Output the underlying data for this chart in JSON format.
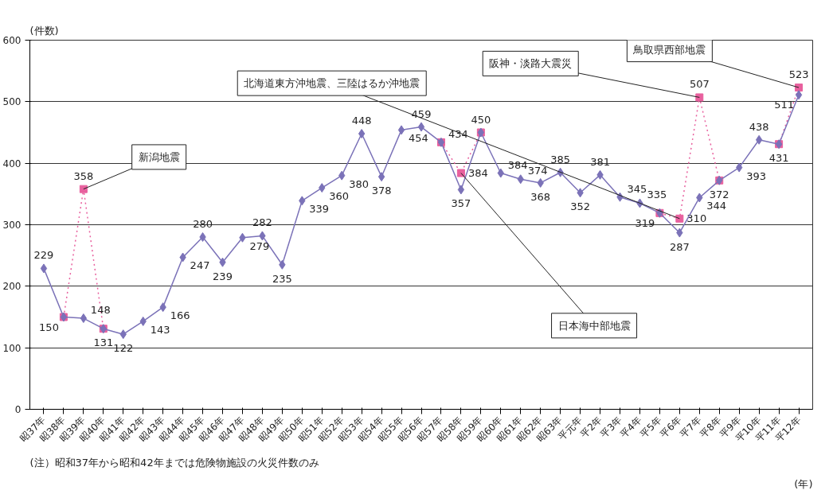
{
  "chart_data": {
    "type": "line",
    "ylabel": "(件数)",
    "xlabel": "(年)",
    "categories": [
      "昭37年",
      "昭38年",
      "昭39年",
      "昭40年",
      "昭41年",
      "昭42年",
      "昭43年",
      "昭44年",
      "昭45年",
      "昭46年",
      "昭47年",
      "昭48年",
      "昭49年",
      "昭50年",
      "昭51年",
      "昭52年",
      "昭53年",
      "昭54年",
      "昭55年",
      "昭56年",
      "昭57年",
      "昭58年",
      "昭59年",
      "昭60年",
      "昭61年",
      "昭62年",
      "昭63年",
      "平元年",
      "平2年",
      "平3年",
      "平4年",
      "平5年",
      "平6年",
      "平7年",
      "平8年",
      "平9年",
      "平10年",
      "平11年",
      "平12年"
    ],
    "series": [
      {
        "color": "#7b72b8",
        "line_style": "solid",
        "marker": "diamond",
        "values": [
          229,
          150,
          148,
          131,
          122,
          143,
          166,
          247,
          280,
          239,
          279,
          282,
          235,
          339,
          360,
          380,
          448,
          378,
          454,
          459,
          434,
          357,
          450,
          384,
          374,
          368,
          385,
          352,
          381,
          345,
          335,
          319,
          287,
          344,
          372,
          393,
          438,
          431,
          511
        ],
        "value_labels": [
          "229",
          null,
          "148",
          null,
          "122",
          "143",
          "166",
          "247",
          "280",
          "239",
          "279",
          "282",
          "235",
          "339",
          "360",
          "380",
          "448",
          "378",
          "454",
          "459",
          null,
          "357",
          null,
          "384",
          "374",
          "368",
          "385",
          "352",
          "381",
          "345",
          "335",
          null,
          "287",
          "344",
          null,
          "393",
          "438",
          null,
          "511"
        ]
      },
      {
        "color": "#e8609e",
        "line_style": "dotted",
        "marker": "square",
        "values": [
          null,
          150,
          358,
          131,
          null,
          null,
          null,
          null,
          null,
          null,
          null,
          null,
          null,
          null,
          null,
          null,
          null,
          null,
          null,
          null,
          434,
          384,
          450,
          null,
          null,
          null,
          null,
          null,
          null,
          null,
          null,
          319,
          310,
          507,
          372,
          null,
          null,
          431,
          523
        ],
        "value_labels": [
          null,
          "150",
          "358",
          "131",
          null,
          null,
          null,
          null,
          null,
          null,
          null,
          null,
          null,
          null,
          null,
          null,
          null,
          null,
          null,
          null,
          "434",
          "384",
          "450",
          null,
          null,
          null,
          null,
          null,
          null,
          null,
          null,
          "319",
          "310",
          "507",
          "372",
          null,
          null,
          "431",
          "523"
        ]
      }
    ],
    "ylim": [
      0,
      600
    ],
    "yticks": [
      0,
      100,
      200,
      300,
      400,
      500,
      600
    ],
    "grid": "y",
    "annotations": [
      {
        "text": "新潟地震",
        "x": "昭39年",
        "y": 358
      },
      {
        "text": "北海道東方沖地震、三陸はるか沖地震",
        "x": "平6年",
        "y": 310
      },
      {
        "text": "阪神・淡路大震災",
        "x": "平7年",
        "y": 507
      },
      {
        "text": "鳥取県西部地震",
        "x": "平12年",
        "y": 523
      },
      {
        "text": "日本海中部地震",
        "x": "昭58年",
        "y": 384
      },
      "(注）昭和37年から昭和42年までは危険物施設の火災件数のみ"
    ]
  }
}
